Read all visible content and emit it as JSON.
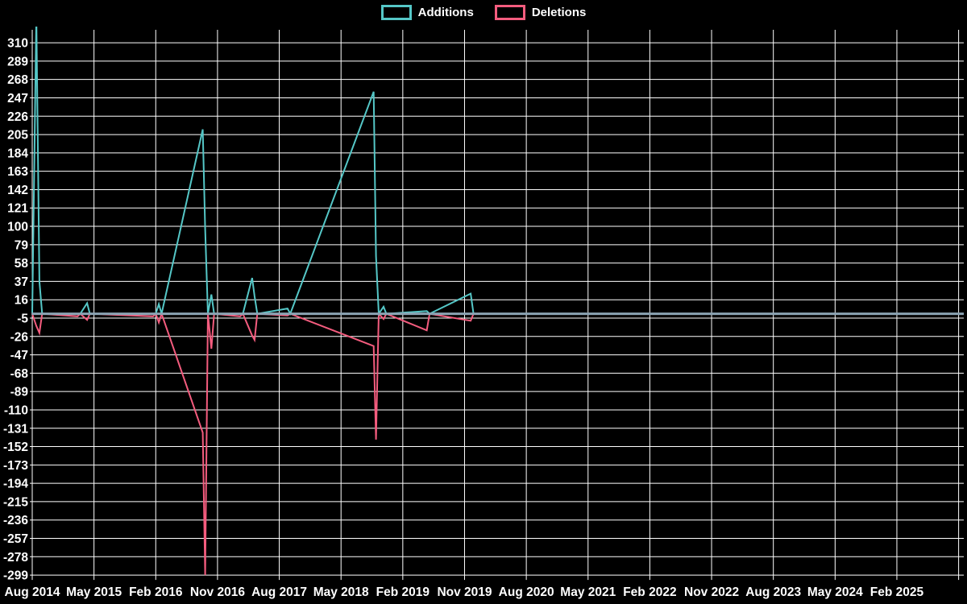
{
  "chart_data": {
    "type": "line",
    "title": "",
    "legend_position": "top-center",
    "background_color": "#000000",
    "grid": {
      "show": true,
      "line_color": "#ffffff",
      "zero_line_color": "#8ba3b3"
    },
    "y_axis": {
      "label": "",
      "min": -299,
      "max": 310,
      "tick_step": 21,
      "ticks": [
        310,
        289,
        268,
        247,
        226,
        205,
        184,
        163,
        142,
        121,
        100,
        79,
        58,
        37,
        16,
        -5,
        -26,
        -47,
        -68,
        -89,
        -110,
        -131,
        -152,
        -173,
        -194,
        -215,
        -236,
        -257,
        -278,
        -299
      ]
    },
    "x_axis": {
      "label": "",
      "unit": "months_since_aug_2014",
      "tick_labels": [
        "Aug 2014",
        "May 2015",
        "Feb 2016",
        "Nov 2016",
        "Aug 2017",
        "May 2018",
        "Feb 2019",
        "Nov 2019",
        "Aug 2020",
        "May 2021",
        "Feb 2022",
        "Nov 2022",
        "Aug 2023",
        "May 2024",
        "Feb 2025"
      ],
      "tick_months": [
        0,
        9,
        18,
        27,
        36,
        45,
        54,
        63,
        72,
        81,
        90,
        99,
        108,
        117,
        126
      ],
      "extra_unlabeled_tick_month": 135,
      "total_months": 135.7
    },
    "series": [
      {
        "name": "Additions",
        "key": "add",
        "color": "#55c7c7"
      },
      {
        "name": "Deletions",
        "key": "del",
        "color": "#f45c7e"
      }
    ],
    "points": [
      {
        "m": 0.0,
        "add": 0,
        "del": 0
      },
      {
        "m": 0.6,
        "add": 340,
        "del": -14
      },
      {
        "m": 1.05,
        "add": 37,
        "del": -22
      },
      {
        "m": 1.45,
        "add": 0,
        "del": 0
      },
      {
        "m": 6.6,
        "add": 0,
        "del": -3
      },
      {
        "m": 7.0,
        "add": 0,
        "del": 0
      },
      {
        "m": 8.0,
        "add": 12,
        "del": -7
      },
      {
        "m": 8.4,
        "add": 0,
        "del": 0
      },
      {
        "m": 17.6,
        "add": 0,
        "del": -3
      },
      {
        "m": 18.0,
        "add": 0,
        "del": 0
      },
      {
        "m": 18.45,
        "add": 11,
        "del": -10
      },
      {
        "m": 18.85,
        "add": 0,
        "del": 0
      },
      {
        "m": 24.85,
        "add": 211,
        "del": -136
      },
      {
        "m": 25.2,
        "add": 97,
        "del": -299
      },
      {
        "m": 25.6,
        "add": 0,
        "del": 0
      },
      {
        "m": 26.1,
        "add": 22,
        "del": -40
      },
      {
        "m": 26.5,
        "add": 0,
        "del": 0
      },
      {
        "m": 30.3,
        "add": 0,
        "del": -3
      },
      {
        "m": 30.7,
        "add": 0,
        "del": 0
      },
      {
        "m": 32.05,
        "add": 41,
        "del": -25
      },
      {
        "m": 32.4,
        "add": 20,
        "del": -30
      },
      {
        "m": 32.8,
        "add": 0,
        "del": 0
      },
      {
        "m": 37.2,
        "add": 6,
        "del": -2
      },
      {
        "m": 37.6,
        "add": 0,
        "del": 0
      },
      {
        "m": 49.75,
        "add": 254,
        "del": -37
      },
      {
        "m": 50.1,
        "add": 66,
        "del": -144
      },
      {
        "m": 50.5,
        "add": 0,
        "del": 0
      },
      {
        "m": 51.2,
        "add": 8,
        "del": -6
      },
      {
        "m": 51.6,
        "add": 0,
        "del": 0
      },
      {
        "m": 57.5,
        "add": 3,
        "del": -19
      },
      {
        "m": 57.9,
        "add": 0,
        "del": 0
      },
      {
        "m": 63.9,
        "add": 23,
        "del": -8
      },
      {
        "m": 64.3,
        "add": 0,
        "del": 0
      },
      {
        "m": 135.7,
        "add": 0,
        "del": 0
      }
    ]
  },
  "legend": {
    "additions_label": "Additions",
    "deletions_label": "Deletions"
  }
}
